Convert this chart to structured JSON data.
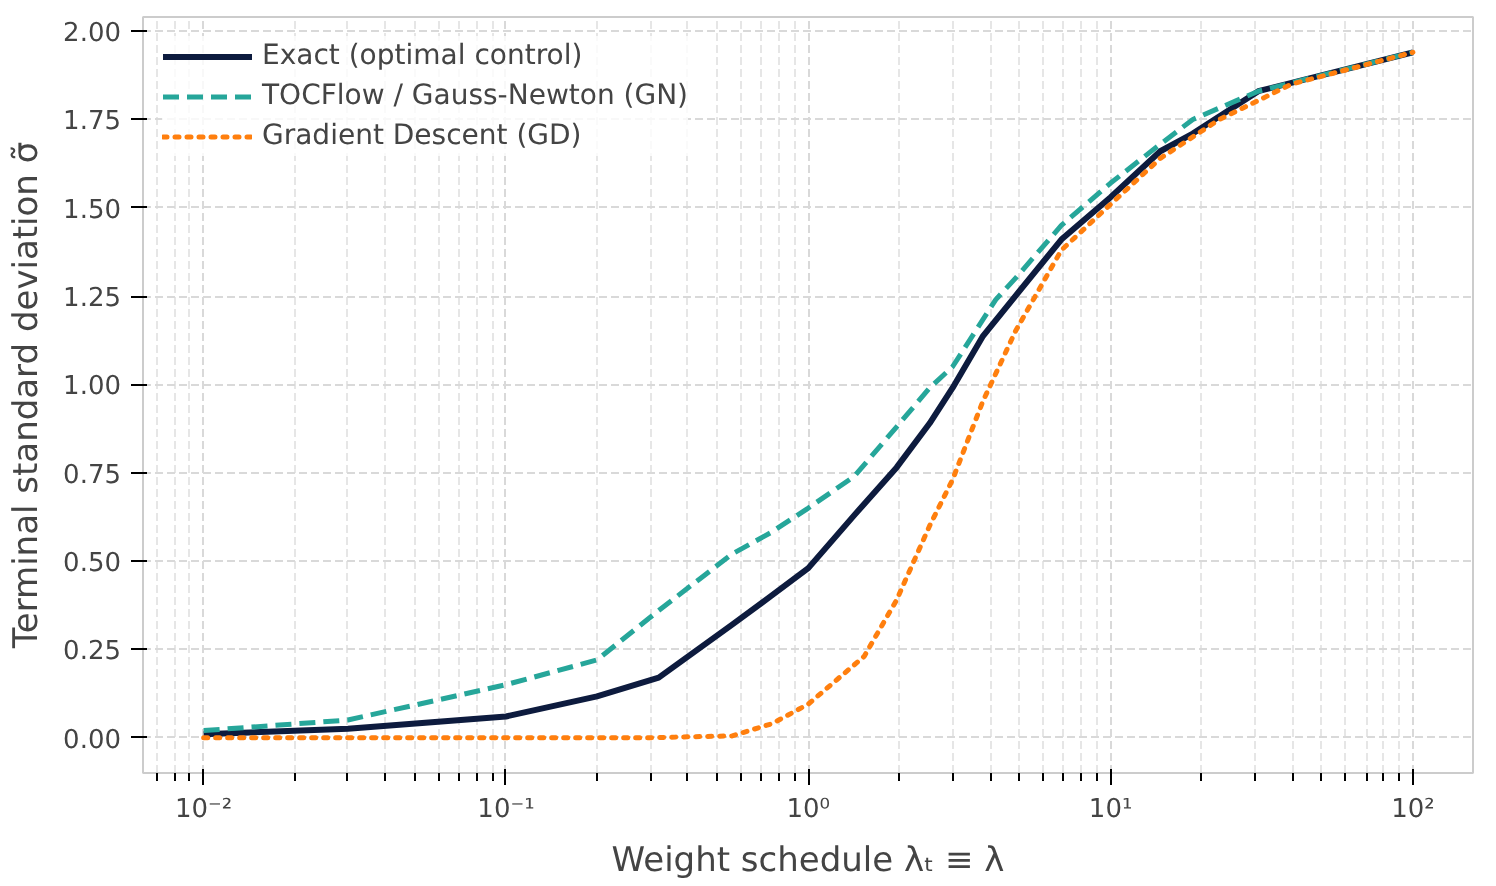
{
  "chart_data": {
    "type": "line",
    "xlabel": "Weight schedule λₜ ≡ λ",
    "ylabel": "Terminal standard deviation σ̃",
    "log": "x",
    "grid": true,
    "legend": "top left",
    "xlim": [
      0.0063,
      158
    ],
    "ylim": [
      -0.1,
      2.04
    ],
    "xticks": [
      {
        "value": 0.01,
        "label": "10⁻²"
      },
      {
        "value": 0.1,
        "label": "10⁻¹"
      },
      {
        "value": 1,
        "label": "10⁰"
      },
      {
        "value": 10,
        "label": "10¹"
      },
      {
        "value": 100,
        "label": "10²"
      }
    ],
    "yticks": [
      {
        "value": 0,
        "label": "0.00"
      },
      {
        "value": 0.25,
        "label": "0.25"
      },
      {
        "value": 0.5,
        "label": "0.50"
      },
      {
        "value": 0.75,
        "label": "0.75"
      },
      {
        "value": 1,
        "label": "1.00"
      },
      {
        "value": 1.25,
        "label": "1.25"
      },
      {
        "value": 1.5,
        "label": "1.50"
      },
      {
        "value": 1.75,
        "label": "1.75"
      },
      {
        "value": 2,
        "label": "2.00"
      }
    ],
    "series": [
      {
        "name": "Exact (optimal control)",
        "color": "#0d1b3e",
        "line_style": "solid",
        "x": [
          0.01,
          0.03,
          0.1,
          0.2,
          0.32,
          0.56,
          0.75,
          1.0,
          1.42,
          1.96,
          2.52,
          3.0,
          3.77,
          4.84,
          6.87,
          10,
          14.6,
          18.7,
          30.8,
          100
        ],
        "values": [
          0.01,
          0.025,
          0.06,
          0.117,
          0.17,
          0.32,
          0.4,
          0.48,
          0.63,
          0.765,
          0.89,
          0.99,
          1.135,
          1.25,
          1.41,
          1.53,
          1.66,
          1.71,
          1.83,
          1.94
        ]
      },
      {
        "name": "TOCFlow / Gauss-Newton (GN)",
        "color": "#26a69a",
        "line_style": "dashed",
        "x": [
          0.01,
          0.03,
          0.1,
          0.2,
          0.32,
          0.56,
          0.75,
          1.0,
          1.42,
          1.96,
          2.52,
          3.0,
          4.17,
          4.84,
          6.87,
          10,
          14.6,
          18.7,
          30.8,
          100
        ],
        "values": [
          0.02,
          0.05,
          0.15,
          0.22,
          0.36,
          0.52,
          0.58,
          0.65,
          0.74,
          0.88,
          0.99,
          1.05,
          1.24,
          1.3,
          1.45,
          1.57,
          1.68,
          1.75,
          1.83,
          1.94
        ]
      },
      {
        "name": "Gradient Descent (GD)",
        "color": "#ff7f0e",
        "line_style": "dotted",
        "x": [
          0.01,
          0.1,
          0.3,
          0.56,
          0.76,
          1.0,
          1.53,
          1.96,
          2.52,
          3.0,
          3.77,
          4.84,
          6.87,
          10,
          14.6,
          22.9,
          39.7,
          100
        ],
        "values": [
          0,
          0,
          0,
          0.005,
          0.04,
          0.095,
          0.23,
          0.39,
          0.6,
          0.73,
          0.95,
          1.15,
          1.38,
          1.51,
          1.64,
          1.75,
          1.85,
          1.94
        ]
      }
    ]
  }
}
